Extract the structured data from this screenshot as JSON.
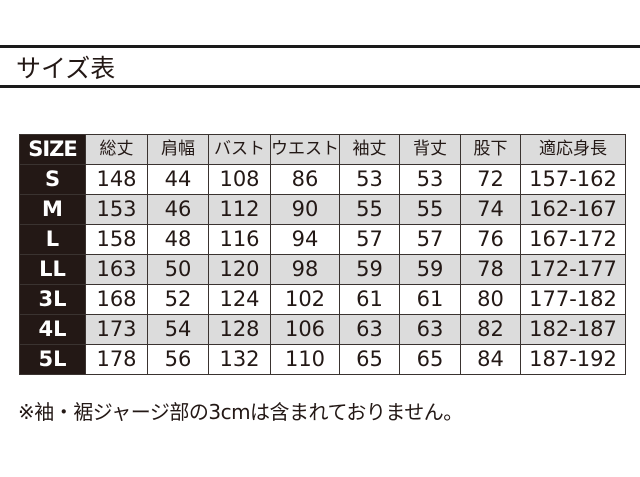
{
  "title": "サイズ表",
  "table": {
    "headers": [
      "SIZE",
      "総丈",
      "肩幅",
      "バスト",
      "ウエスト",
      "袖丈",
      "背丈",
      "股下",
      "適応身長"
    ],
    "rows": [
      [
        "S",
        "148",
        "44",
        "108",
        "86",
        "53",
        "53",
        "72",
        "157-162"
      ],
      [
        "M",
        "153",
        "46",
        "112",
        "90",
        "55",
        "55",
        "74",
        "162-167"
      ],
      [
        "L",
        "158",
        "48",
        "116",
        "94",
        "57",
        "57",
        "76",
        "167-172"
      ],
      [
        "LL",
        "163",
        "50",
        "120",
        "98",
        "59",
        "59",
        "78",
        "172-177"
      ],
      [
        "3L",
        "168",
        "52",
        "124",
        "102",
        "61",
        "61",
        "80",
        "177-182"
      ],
      [
        "4L",
        "173",
        "54",
        "128",
        "106",
        "63",
        "63",
        "82",
        "182-187"
      ],
      [
        "5L",
        "178",
        "56",
        "132",
        "110",
        "65",
        "65",
        "84",
        "187-192"
      ]
    ]
  },
  "note": "※袖・裾ジャージ部の3cmは含まれておりません。",
  "colors": {
    "header_bg": "#dcdcdc",
    "size_col_bg": "#231815",
    "alt_row_bg": "#dcdcdc"
  }
}
